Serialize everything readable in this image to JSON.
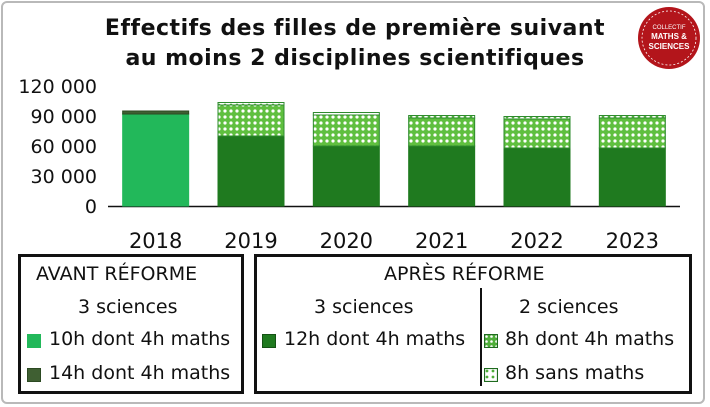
{
  "title_lines": [
    "Effectifs des filles de première suivant",
    "au moins 2 disciplines scientifiques"
  ],
  "logo": {
    "lines": [
      "COLLECTIF",
      "MATHS &",
      "SCIENCES"
    ],
    "color": "#b3151b"
  },
  "legend": {
    "before": {
      "header": "AVANT RÉFORME",
      "subheader": "3 sciences",
      "items": [
        "10h dont 4h maths",
        "14h dont 4h maths"
      ]
    },
    "after": {
      "header": "APRÈS RÉFORME",
      "left_subheader": "3 sciences",
      "left_items": [
        "12h dont 4h maths"
      ],
      "right_subheader": "2 sciences",
      "right_items": [
        "8h dont 4h maths",
        "8h sans maths"
      ]
    }
  },
  "colors": {
    "light_green": "#22b85a",
    "dark_green": "#3f5f32",
    "mid_green": "#1f7a1f",
    "dotted_fill": "#5fbf3f",
    "axis": "#111111"
  },
  "chart_data": {
    "type": "bar",
    "stacked": true,
    "categories": [
      "2018",
      "2019",
      "2020",
      "2021",
      "2022",
      "2023"
    ],
    "y_ticks": [
      "0",
      "30 000",
      "60 000",
      "90 000",
      "120 000"
    ],
    "ylim": [
      0,
      120000
    ],
    "series": [
      {
        "name": "10h dont 4h maths",
        "pattern": "solid-light",
        "values": [
          92000,
          0,
          0,
          0,
          0,
          0
        ]
      },
      {
        "name": "14h dont 4h maths",
        "pattern": "solid-dark",
        "values": [
          3000,
          0,
          0,
          0,
          0,
          0
        ]
      },
      {
        "name": "12h dont 4h maths",
        "pattern": "solid-mid",
        "values": [
          0,
          70000,
          60000,
          60000,
          58000,
          58000
        ]
      },
      {
        "name": "8h dont 4h maths",
        "pattern": "dots-dense",
        "values": [
          0,
          31000,
          31000,
          28000,
          29000,
          30000
        ]
      },
      {
        "name": "8h sans maths",
        "pattern": "dots-light",
        "values": [
          0,
          2500,
          2500,
          2500,
          2500,
          2500
        ]
      }
    ]
  }
}
